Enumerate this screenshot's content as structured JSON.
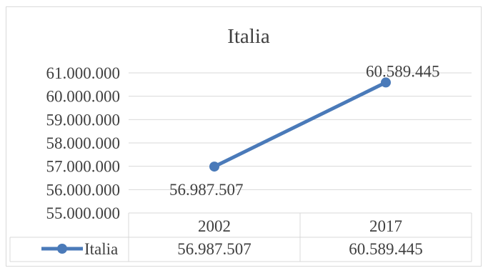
{
  "chart_data": {
    "type": "line",
    "title": "Italia",
    "categories": [
      "2002",
      "2017"
    ],
    "series": [
      {
        "name": "Italia",
        "values": [
          56987507,
          60589445
        ],
        "color": "#4a7ab9"
      }
    ],
    "data_labels": [
      "56.987.507",
      "60.589.445"
    ],
    "y_tick_labels": [
      "61.000.000",
      "60.000.000",
      "59.000.000",
      "58.000.000",
      "57.000.000",
      "56.000.000",
      "55.000.000"
    ],
    "y_ticks": [
      61000000,
      60000000,
      59000000,
      58000000,
      57000000,
      56000000,
      55000000
    ],
    "ylim": [
      55000000,
      61000000
    ],
    "grid": true,
    "data_table": true,
    "gridline_color": "#d9d9d9"
  }
}
